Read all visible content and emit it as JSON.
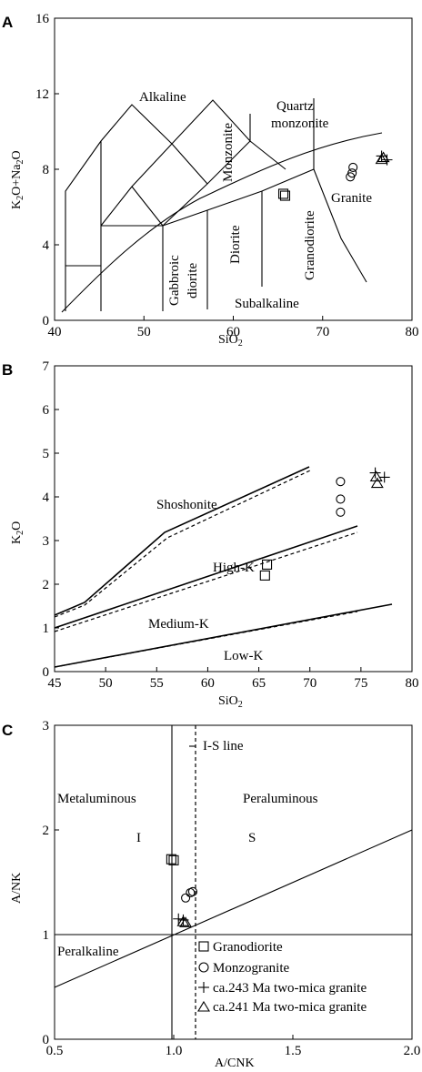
{
  "chart_data": [
    {
      "panel": "A",
      "type": "scatter",
      "xlabel": "SiO2",
      "ylabel": "K2O+Na2O",
      "xlim": [
        40,
        80
      ],
      "ylim": [
        0,
        16
      ],
      "xticks": [
        "40",
        "50",
        "60",
        "70",
        "80"
      ],
      "yticks": [
        "0",
        "4",
        "8",
        "12",
        "16"
      ],
      "field_labels": {
        "alkaline": "Alkaline",
        "quartz_monzonite_1": "Quartz",
        "quartz_monzonite_2": "monzonite",
        "monzonite": "Monzonite",
        "granite": "Granite",
        "granodiorite": "Granodiorite",
        "diorite": "Diorite",
        "gabbroic_1": "Gabbroic",
        "gabbroic_2": "diorite",
        "subalkaline": "Subalkaline"
      },
      "series": [
        {
          "name": "Granodiorite",
          "marker": "square",
          "points": [
            [
              65.6,
              6.7
            ],
            [
              65.8,
              6.6
            ]
          ]
        },
        {
          "name": "Monzogranite",
          "marker": "circle",
          "points": [
            [
              73.1,
              7.6
            ],
            [
              73.3,
              7.8
            ],
            [
              73.4,
              8.1
            ]
          ]
        },
        {
          "name": "ca.243 Ma two-mica granite",
          "marker": "plus",
          "points": [
            [
              76.6,
              8.7
            ],
            [
              77.2,
              8.5
            ]
          ]
        },
        {
          "name": "ca.241 Ma two-mica granite",
          "marker": "triangle",
          "points": [
            [
              76.6,
              8.5
            ],
            [
              76.8,
              8.6
            ]
          ]
        }
      ]
    },
    {
      "panel": "B",
      "type": "scatter",
      "xlabel": "SiO2",
      "ylabel": "K2O",
      "xlim": [
        45,
        80
      ],
      "ylim": [
        0,
        7
      ],
      "xticks": [
        "45",
        "50",
        "55",
        "60",
        "65",
        "70",
        "75",
        "80"
      ],
      "yticks": [
        "0",
        "1",
        "2",
        "3",
        "4",
        "5",
        "6",
        "7"
      ],
      "field_labels": {
        "shoshonite": "Shoshonite",
        "highk": "High-K",
        "mediumk": "Medium-K",
        "lowk": "Low-K"
      },
      "series": [
        {
          "name": "Granodiorite",
          "marker": "square",
          "points": [
            [
              65.8,
              2.45
            ],
            [
              65.6,
              2.2
            ]
          ]
        },
        {
          "name": "Monzogranite",
          "marker": "circle",
          "points": [
            [
              73.0,
              4.35
            ],
            [
              73.0,
              3.95
            ],
            [
              73.0,
              3.65
            ]
          ]
        },
        {
          "name": "ca.243 Ma two-mica granite",
          "marker": "plus",
          "points": [
            [
              76.4,
              4.55
            ],
            [
              77.3,
              4.45
            ]
          ]
        },
        {
          "name": "ca.241 Ma two-mica granite",
          "marker": "triangle",
          "points": [
            [
              76.5,
              4.45
            ],
            [
              76.6,
              4.3
            ]
          ]
        }
      ]
    },
    {
      "panel": "C",
      "type": "scatter",
      "xlabel": "A/CNK",
      "ylabel": "A/NK",
      "xlim": [
        0.5,
        2.0
      ],
      "ylim": [
        0,
        3
      ],
      "xticks": [
        "0.5",
        "1.0",
        "1.5",
        "2.0"
      ],
      "yticks": [
        "0",
        "1",
        "2",
        "3"
      ],
      "field_labels": {
        "is_line": "I-S line",
        "metaluminous": "Metaluminous",
        "peraluminous": "Peraluminous",
        "i": "I",
        "s": "S",
        "peralkaline": "Peralkaline"
      },
      "series": [
        {
          "name": "Granodiorite",
          "marker": "square",
          "points": [
            [
              0.99,
              1.72
            ],
            [
              1.0,
              1.71
            ]
          ]
        },
        {
          "name": "Monzogranite",
          "marker": "circle",
          "points": [
            [
              1.05,
              1.35
            ],
            [
              1.07,
              1.4
            ],
            [
              1.08,
              1.41
            ]
          ]
        },
        {
          "name": "ca.243 Ma two-mica granite",
          "marker": "plus",
          "points": [
            [
              1.02,
              1.15
            ],
            [
              1.04,
              1.14
            ]
          ]
        },
        {
          "name": "ca.241 Ma two-mica granite",
          "marker": "triangle",
          "points": [
            [
              1.04,
              1.12
            ],
            [
              1.05,
              1.11
            ]
          ]
        }
      ]
    }
  ]
}
